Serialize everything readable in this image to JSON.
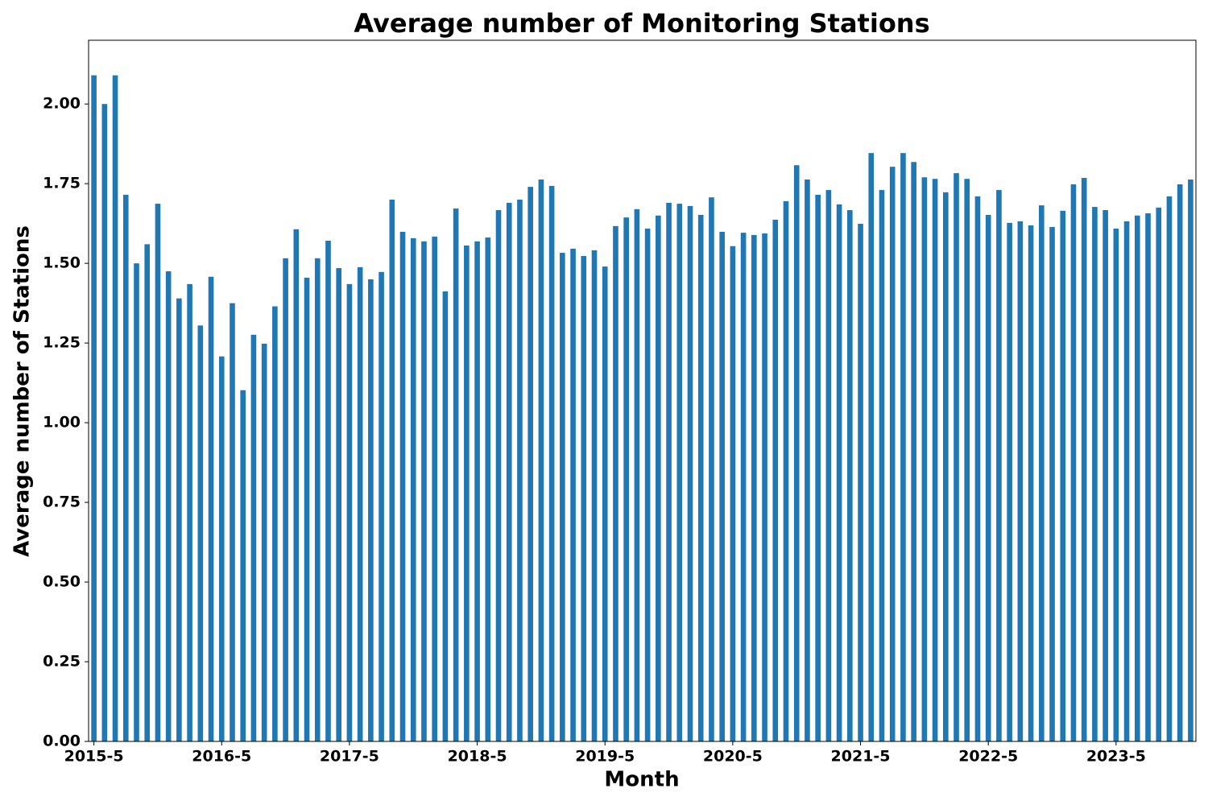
{
  "chart_data": {
    "type": "bar",
    "title": "Average number of  Monitoring Stations",
    "x_label": "Month",
    "y_label": "Average number of Stations",
    "color": "#1f77b4",
    "categories": [
      "2015-5",
      null,
      null,
      null,
      null,
      null,
      null,
      null,
      null,
      null,
      null,
      null,
      "2016-5",
      null,
      null,
      null,
      null,
      null,
      null,
      null,
      null,
      null,
      null,
      null,
      "2017-5",
      null,
      null,
      null,
      null,
      null,
      null,
      null,
      null,
      null,
      null,
      null,
      "2018-5",
      null,
      null,
      null,
      null,
      null,
      null,
      null,
      null,
      null,
      null,
      null,
      "2019-5",
      null,
      null,
      null,
      null,
      null,
      null,
      null,
      null,
      null,
      null,
      null,
      "2020-5",
      null,
      null,
      null,
      null,
      null,
      null,
      null,
      null,
      null,
      null,
      null,
      "2021-5",
      null,
      null,
      null,
      null,
      null,
      null,
      null,
      null,
      null,
      null,
      null,
      "2022-5",
      null,
      null,
      null,
      null,
      null,
      null,
      null,
      null,
      null,
      null,
      null,
      "2023-5",
      null,
      null,
      null,
      null,
      null,
      null,
      null
    ],
    "values": [
      2.09,
      2.0,
      2.09,
      1.715,
      1.5,
      1.56,
      1.687,
      1.475,
      1.39,
      1.435,
      1.305,
      1.458,
      1.208,
      1.375,
      1.102,
      1.276,
      1.248,
      1.365,
      1.516,
      1.607,
      1.455,
      1.516,
      1.571,
      1.485,
      1.435,
      1.488,
      1.45,
      1.473,
      1.7,
      1.599,
      1.579,
      1.569,
      1.584,
      1.412,
      1.672,
      1.556,
      1.569,
      1.581,
      1.667,
      1.69,
      1.7,
      1.74,
      1.763,
      1.743,
      1.533,
      1.546,
      1.523,
      1.541,
      1.49,
      1.617,
      1.644,
      1.67,
      1.609,
      1.65,
      1.69,
      1.687,
      1.68,
      1.652,
      1.707,
      1.599,
      1.554,
      1.596,
      1.589,
      1.594,
      1.637,
      1.695,
      1.808,
      1.763,
      1.715,
      1.73,
      1.685,
      1.667,
      1.624,
      1.846,
      1.73,
      1.803,
      1.846,
      1.818,
      1.77,
      1.765,
      1.723,
      1.783,
      1.765,
      1.71,
      1.652,
      1.73,
      1.627,
      1.632,
      1.619,
      1.682,
      1.614,
      1.665,
      1.748,
      1.768,
      1.677,
      1.667,
      1.609,
      1.632,
      1.65,
      1.657,
      1.675,
      1.71,
      1.748,
      1.763
    ],
    "ylim": [
      0,
      2.2
    ],
    "yticks": [
      {
        "value": 0,
        "label": "0.00"
      },
      {
        "value": 0.25,
        "label": "0.25"
      },
      {
        "value": 0.5,
        "label": "0.50"
      },
      {
        "value": 0.75,
        "label": "0.75"
      },
      {
        "value": 1,
        "label": "1.00"
      },
      {
        "value": 1.25,
        "label": "1.25"
      },
      {
        "value": 1.5,
        "label": "1.50"
      },
      {
        "value": 1.75,
        "label": "1.75"
      },
      {
        "value": 2,
        "label": "2.00"
      }
    ],
    "grid": false
  }
}
